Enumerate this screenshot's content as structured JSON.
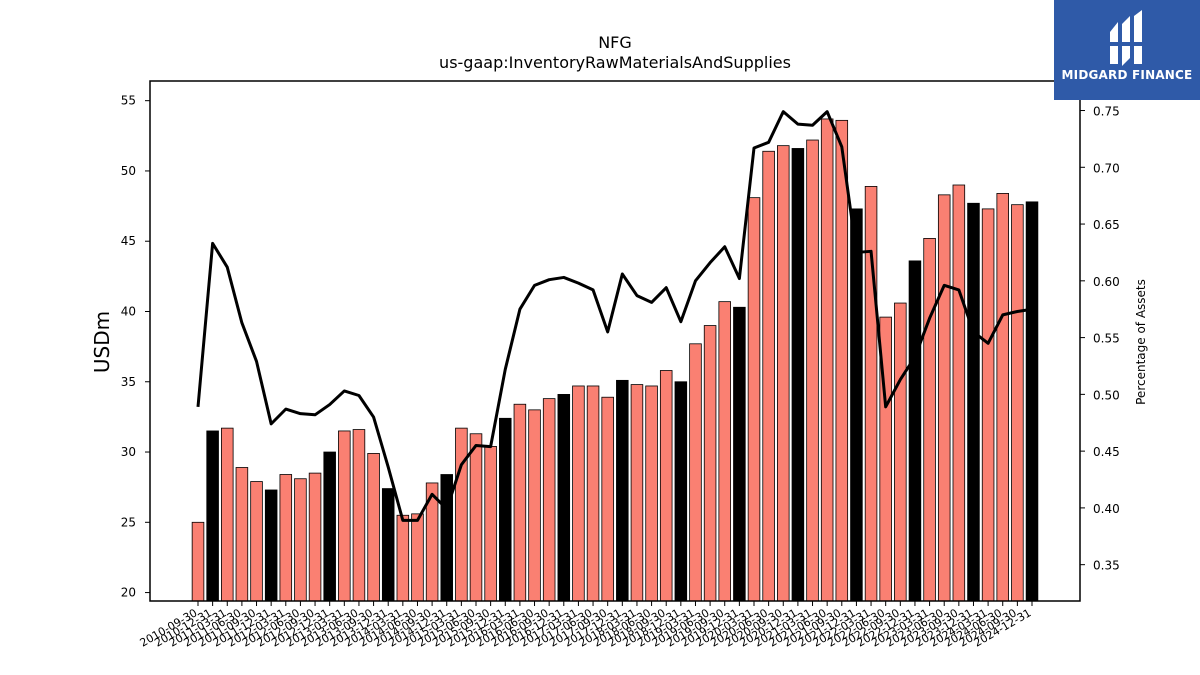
{
  "chart_data": {
    "type": "bar",
    "title": "NFG",
    "subtitle": "us-gaap:InventoryRawMaterialsAndSupplies",
    "ylabel": "USDm",
    "y2label": "Percentage of Assets",
    "ylim": [
      19.4,
      56.4
    ],
    "y2lim": [
      0.318,
      0.776
    ],
    "yticks": [
      20,
      25,
      30,
      35,
      40,
      45,
      50,
      55
    ],
    "y2ticks": [
      "0.35",
      "0.40",
      "0.45",
      "0.50",
      "0.55",
      "0.60",
      "0.65",
      "0.70",
      "0.75"
    ],
    "grid": false,
    "categories": [
      "2010-09-30",
      "2010-12-31",
      "2011-03-31",
      "2011-06-30",
      "2011-09-30",
      "2011-12-31",
      "2012-03-31",
      "2012-06-30",
      "2012-09-30",
      "2012-12-31",
      "2013-03-31",
      "2013-06-30",
      "2013-09-30",
      "2013-12-31",
      "2014-03-31",
      "2014-06-30",
      "2014-09-30",
      "2014-12-31",
      "2015-03-31",
      "2015-06-30",
      "2015-09-30",
      "2015-12-31",
      "2016-03-31",
      "2016-06-30",
      "2016-09-30",
      "2016-12-31",
      "2017-03-31",
      "2017-06-30",
      "2017-09-30",
      "2017-12-31",
      "2018-03-31",
      "2018-06-30",
      "2018-09-30",
      "2018-12-31",
      "2019-03-31",
      "2019-06-30",
      "2019-09-30",
      "2019-12-31",
      "2020-03-31",
      "2020-06-30",
      "2020-09-30",
      "2020-12-31",
      "2021-03-31",
      "2021-06-30",
      "2021-09-30",
      "2021-12-31",
      "2022-03-31",
      "2022-06-30",
      "2022-09-30",
      "2022-12-31",
      "2023-03-31",
      "2023-06-30",
      "2023-09-30",
      "2023-12-31",
      "2024-03-31",
      "2024-06-30",
      "2024-09-30",
      "2024-12-31"
    ],
    "series": [
      {
        "type": "bar",
        "values": [
          25.0,
          31.5,
          31.7,
          28.9,
          27.9,
          27.3,
          28.4,
          28.1,
          28.5,
          30.0,
          31.5,
          31.6,
          29.9,
          27.4,
          25.5,
          25.6,
          27.8,
          28.4,
          31.7,
          31.3,
          30.4,
          32.4,
          33.4,
          33.0,
          33.8,
          34.1,
          34.7,
          34.7,
          33.9,
          35.1,
          34.8,
          34.7,
          35.8,
          35.0,
          37.7,
          39.0,
          40.7,
          40.3,
          48.1,
          51.4,
          51.8,
          51.6,
          52.2,
          53.7,
          53.6,
          47.3,
          48.9,
          39.6,
          40.6,
          43.6,
          45.2,
          48.3,
          49.0,
          47.7,
          47.3,
          48.4,
          47.6,
          47.8
        ]
      },
      {
        "type": "line",
        "color": "#000000",
        "values": [
          0.489,
          0.633,
          0.612,
          0.563,
          0.529,
          0.474,
          0.487,
          0.483,
          0.482,
          0.491,
          0.503,
          0.499,
          0.48,
          0.436,
          0.389,
          0.389,
          0.412,
          0.399,
          0.438,
          0.455,
          0.454,
          0.522,
          0.575,
          0.596,
          0.601,
          0.603,
          0.598,
          0.592,
          0.555,
          0.606,
          0.587,
          0.581,
          0.594,
          0.564,
          0.6,
          0.616,
          0.63,
          0.602,
          0.717,
          0.722,
          0.749,
          0.738,
          0.737,
          0.749,
          0.718,
          0.625,
          0.626,
          0.489,
          0.513,
          0.533,
          0.567,
          0.596,
          0.592,
          0.555,
          0.545,
          0.57,
          0.573,
          0.575
        ]
      }
    ],
    "bar_color": "#fa8072",
    "bar_highlight_color": "#000000",
    "highlight_note": "year-end (12-31) bars drawn black"
  },
  "watermark": {
    "logo_text": "MIDGARD FINANCE",
    "background": "#2f5aa8"
  }
}
